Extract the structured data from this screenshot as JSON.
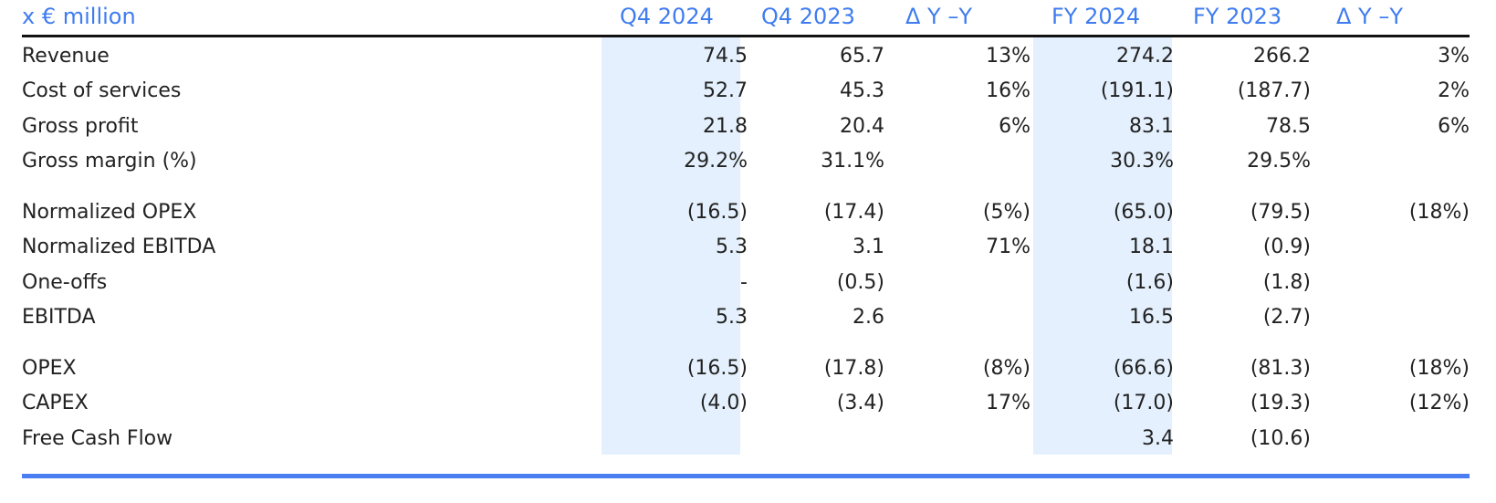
{
  "table": {
    "headers": {
      "label": "x € million",
      "q4_2024": "Q4 2024",
      "q4_2023": "Q4 2023",
      "q4_delta": "Δ Y –Y",
      "fy_2024": "FY 2024",
      "fy_2023": "FY 2023",
      "fy_delta": "Δ Y –Y"
    },
    "rows": [
      {
        "label": "Revenue",
        "q4_2024": "74.5",
        "q4_2023": "65.7",
        "q4_delta": "13%",
        "fy_2024": "274.2",
        "fy_2023": "266.2",
        "fy_delta": "3%"
      },
      {
        "label": "Cost of services",
        "q4_2024": "52.7",
        "q4_2023": "45.3",
        "q4_delta": "16%",
        "fy_2024": "(191.1)",
        "fy_2023": "(187.7)",
        "fy_delta": "2%"
      },
      {
        "label": "Gross profit",
        "q4_2024": "21.8",
        "q4_2023": "20.4",
        "q4_delta": "6%",
        "fy_2024": "83.1",
        "fy_2023": "78.5",
        "fy_delta": "6%"
      },
      {
        "label": "Gross margin (%)",
        "q4_2024": "29.2%",
        "q4_2023": "31.1%",
        "q4_delta": "",
        "fy_2024": "30.3%",
        "fy_2023": "29.5%",
        "fy_delta": ""
      },
      {
        "label": "Normalized OPEX",
        "q4_2024": "(16.5)",
        "q4_2023": "(17.4)",
        "q4_delta": "(5%)",
        "fy_2024": "(65.0)",
        "fy_2023": "(79.5)",
        "fy_delta": "(18%)"
      },
      {
        "label": "Normalized EBITDA",
        "q4_2024": "5.3",
        "q4_2023": "3.1",
        "q4_delta": "71%",
        "fy_2024": "18.1",
        "fy_2023": "(0.9)",
        "fy_delta": ""
      },
      {
        "label": "One-offs",
        "q4_2024": "-",
        "q4_2023": "(0.5)",
        "q4_delta": "",
        "fy_2024": "(1.6)",
        "fy_2023": "(1.8)",
        "fy_delta": ""
      },
      {
        "label": "EBITDA",
        "q4_2024": "5.3",
        "q4_2023": "2.6",
        "q4_delta": "",
        "fy_2024": "16.5",
        "fy_2023": "(2.7)",
        "fy_delta": ""
      },
      {
        "label": "OPEX",
        "q4_2024": "(16.5)",
        "q4_2023": "(17.8)",
        "q4_delta": "(8%)",
        "fy_2024": "(66.6)",
        "fy_2023": "(81.3)",
        "fy_delta": "(18%)"
      },
      {
        "label": "CAPEX",
        "q4_2024": "(4.0)",
        "q4_2023": "(3.4)",
        "q4_delta": "17%",
        "fy_2024": "(17.0)",
        "fy_2023": "(19.3)",
        "fy_delta": "(12%)"
      },
      {
        "label": "Free Cash Flow",
        "q4_2024": "",
        "q4_2023": "",
        "q4_delta": "",
        "fy_2024": "3.4",
        "fy_2023": "(10.6)",
        "fy_delta": ""
      }
    ]
  },
  "colors": {
    "header_text": "#3f7cf0",
    "highlight_column": "#e4f0fd",
    "bottom_rule": "#4a7ff2",
    "top_rule": "#111111"
  }
}
